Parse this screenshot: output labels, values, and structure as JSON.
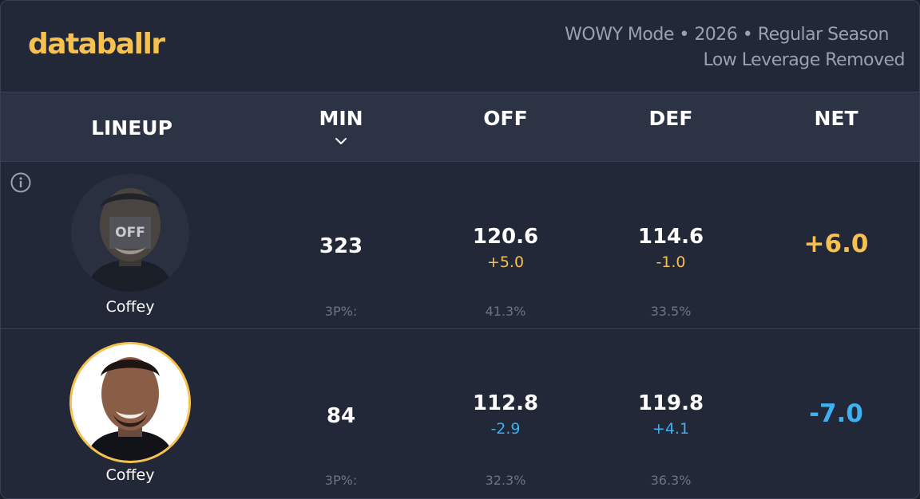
{
  "header": {
    "logo": "databallr",
    "mode_line1": "WOWY Mode • 2026 • Regular Season",
    "mode_line2": "Low Leverage Removed"
  },
  "columns": {
    "lineup": "LINEUP",
    "min": "MIN",
    "off": "OFF",
    "def": "DEF",
    "net": "NET",
    "sort_icon": "chevron-down-icon"
  },
  "colors": {
    "accent_yellow": "#f6c14f",
    "accent_blue": "#3db2f0",
    "background": "#222838",
    "header_band": "#2c3344"
  },
  "rows": [
    {
      "player": "Coffey",
      "badge": "OFF",
      "min": "323",
      "off": "120.6",
      "off_delta": "+5.0",
      "def": "114.6",
      "def_delta": "-1.0",
      "net": "+6.0",
      "three_label": "3P%:",
      "off_3p": "41.3%",
      "def_3p": "33.5%"
    },
    {
      "player": "Coffey",
      "min": "84",
      "off": "112.8",
      "off_delta": "-2.9",
      "def": "119.8",
      "def_delta": "+4.1",
      "net": "-7.0",
      "three_label": "3P%:",
      "off_3p": "32.3%",
      "def_3p": "36.3%"
    }
  ]
}
